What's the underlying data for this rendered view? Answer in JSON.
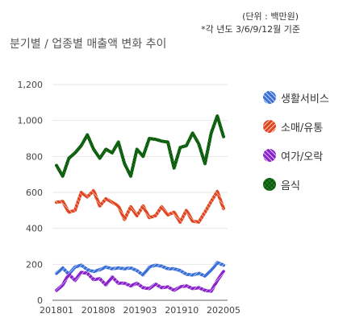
{
  "header": {
    "unit_label": "(단위 : 백만원)",
    "note": "*각 년도 3/6/9/12월 기준",
    "title": "분기별 / 업종별 매출액 변화 추이"
  },
  "chart_data": {
    "type": "line",
    "title": "분기별 / 업종별 매출액 변화 추이",
    "x_tick_labels": [
      "201801",
      "201808",
      "201903",
      "201910",
      "202005"
    ],
    "y_ticks": [
      "0",
      "200",
      "400",
      "600",
      "800",
      "1,000",
      "1,200"
    ],
    "ylim": [
      0,
      1200
    ],
    "grid": true,
    "legend_position": "right",
    "series": [
      {
        "name": "생활서비스",
        "color": "#3a6fd8",
        "values": [
          150,
          180,
          145,
          185,
          195,
          170,
          160,
          170,
          185,
          175,
          180,
          175,
          180,
          165,
          140,
          185,
          195,
          190,
          175,
          175,
          165,
          145,
          140,
          150,
          135,
          165,
          210,
          195
        ]
      },
      {
        "name": "소매/유통",
        "color": "#e0451f",
        "values": [
          545,
          550,
          490,
          500,
          600,
          575,
          610,
          525,
          565,
          545,
          525,
          450,
          520,
          470,
          525,
          460,
          470,
          520,
          475,
          490,
          435,
          500,
          440,
          435,
          490,
          550,
          605,
          510
        ]
      },
      {
        "name": "여가/오락",
        "color": "#8a22cc",
        "values": [
          55,
          85,
          145,
          110,
          155,
          150,
          115,
          120,
          85,
          130,
          95,
          95,
          80,
          95,
          70,
          65,
          90,
          70,
          75,
          55,
          75,
          80,
          65,
          70,
          55,
          50,
          110,
          160
        ]
      },
      {
        "name": "음식",
        "color": "#1a7d1a",
        "values": [
          750,
          690,
          790,
          820,
          860,
          920,
          840,
          790,
          840,
          820,
          880,
          760,
          690,
          840,
          800,
          900,
          895,
          885,
          880,
          735,
          850,
          860,
          930,
          870,
          760,
          930,
          1025,
          910
        ]
      }
    ]
  }
}
